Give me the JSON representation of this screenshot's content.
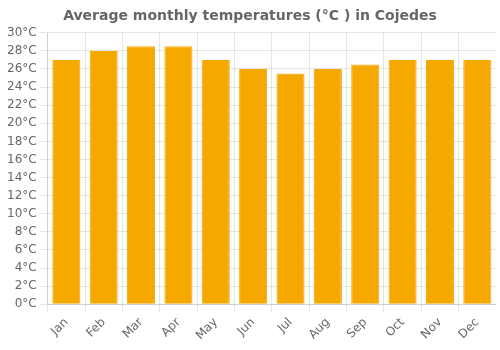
{
  "chart_data": {
    "type": "bar",
    "title": "Average monthly temperatures (°C ) in Cojedes",
    "categories": [
      "Jan",
      "Feb",
      "Mar",
      "Apr",
      "May",
      "Jun",
      "Jul",
      "Aug",
      "Sep",
      "Oct",
      "Nov",
      "Dec"
    ],
    "values": [
      27.0,
      28.0,
      28.5,
      28.5,
      27.0,
      26.0,
      25.5,
      26.0,
      26.5,
      27.0,
      27.0,
      27.0
    ],
    "color": "#F5A800",
    "ylim": [
      0,
      30
    ],
    "yticks": [
      {
        "value": 0,
        "label": "0°C"
      },
      {
        "value": 2,
        "label": "2°C"
      },
      {
        "value": 4,
        "label": "4°C"
      },
      {
        "value": 6,
        "label": "6°C"
      },
      {
        "value": 8,
        "label": "8°C"
      },
      {
        "value": 10,
        "label": "10°C"
      },
      {
        "value": 12,
        "label": "12°C"
      },
      {
        "value": 14,
        "label": "14°C"
      },
      {
        "value": 16,
        "label": "16°C"
      },
      {
        "value": 18,
        "label": "18°C"
      },
      {
        "value": 20,
        "label": "20°C"
      },
      {
        "value": 22,
        "label": "22°C"
      },
      {
        "value": 24,
        "label": "24°C"
      },
      {
        "value": 26,
        "label": "26°C"
      },
      {
        "value": 28,
        "label": "28°C"
      },
      {
        "value": 30,
        "label": "30°C"
      }
    ],
    "grid": true
  }
}
